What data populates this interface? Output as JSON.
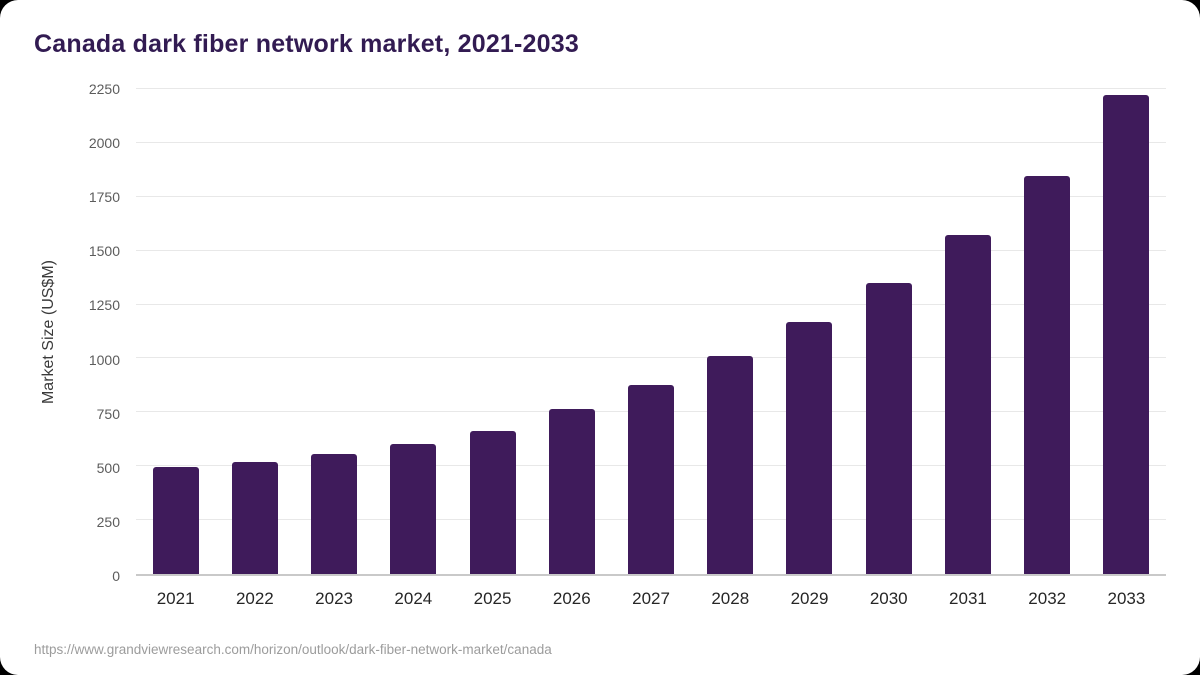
{
  "source": "https://www.grandviewresearch.com/horizon/outlook/dark-fiber-network-market/canada",
  "colors": {
    "bar": "#3f1b5b",
    "title": "#321b52",
    "grid": "#e8e8e8",
    "axis_line": "#c9c9c9",
    "ytick_text": "#5c5c5c",
    "xtick_text": "#262626",
    "source_text": "#9c9c9c"
  },
  "chart_data": {
    "type": "bar",
    "title": "Canada dark fiber network market, 2021-2033",
    "xlabel": "",
    "ylabel": "Market Size (US$M)",
    "categories": [
      "2021",
      "2022",
      "2023",
      "2024",
      "2025",
      "2026",
      "2027",
      "2028",
      "2029",
      "2030",
      "2031",
      "2032",
      "2033"
    ],
    "values": [
      495,
      520,
      555,
      605,
      665,
      765,
      875,
      1010,
      1170,
      1350,
      1575,
      1845,
      2220
    ],
    "ylim": [
      0,
      2250
    ],
    "ytick_step": 250,
    "grid": true,
    "legend": "none"
  }
}
